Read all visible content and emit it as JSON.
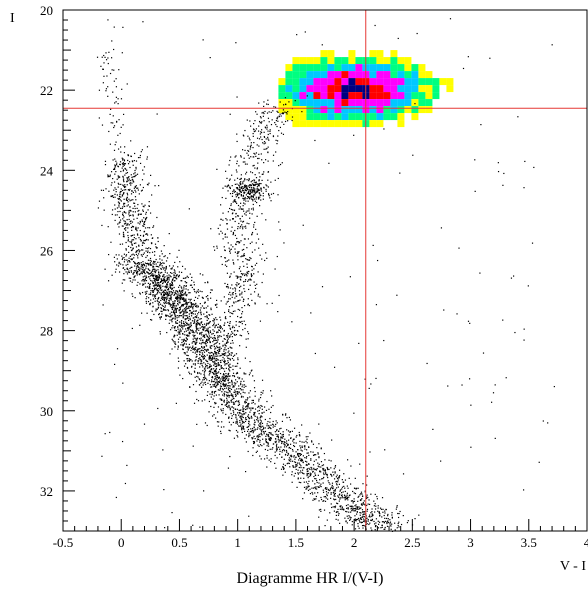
{
  "chart_data": {
    "type": "scatter",
    "title": "Diagramme HR I/(V-I)",
    "xlabel": "V - I",
    "ylabel": "I",
    "xlim": [
      -0.5,
      4.0
    ],
    "ylim": [
      33.0,
      20.0
    ],
    "y_inverted": true,
    "x_ticks": [
      -0.5,
      0,
      0.5,
      1,
      1.5,
      2,
      2.5,
      3,
      3.5,
      4
    ],
    "x_tick_labels": [
      "-0.5",
      "0",
      "0.5",
      "1",
      "1.5",
      "2",
      "2.5",
      "3",
      "3.5",
      "4"
    ],
    "y_ticks": [
      20,
      22,
      24,
      26,
      28,
      30,
      32
    ],
    "y_tick_labels": [
      "20",
      "22",
      "24",
      "26",
      "28",
      "30",
      "32"
    ],
    "crosshair": {
      "x": 2.1,
      "y": 22.45,
      "color": "#e53935"
    },
    "grid": false,
    "point_color": "#000000",
    "density_colors": [
      "#ffff00",
      "#00ff80",
      "#00c8ff",
      "#ff00ff",
      "#ff0000",
      "#000080"
    ],
    "series": [
      {
        "structure": "main-sequence",
        "points": [
          [
            0.1,
            26.2
          ],
          [
            0.2,
            26.4
          ],
          [
            0.3,
            26.6
          ],
          [
            0.35,
            26.8
          ],
          [
            0.4,
            27.0
          ],
          [
            0.45,
            27.2
          ],
          [
            0.5,
            27.4
          ],
          [
            0.55,
            27.6
          ],
          [
            0.6,
            27.8
          ],
          [
            0.65,
            28.0
          ],
          [
            0.7,
            28.3
          ],
          [
            0.75,
            28.6
          ],
          [
            0.8,
            28.9
          ],
          [
            0.85,
            29.2
          ],
          [
            0.9,
            29.5
          ],
          [
            1.0,
            29.9
          ],
          [
            1.1,
            30.2
          ],
          [
            1.2,
            30.5
          ],
          [
            1.35,
            30.8
          ],
          [
            1.5,
            31.1
          ],
          [
            1.65,
            31.5
          ],
          [
            1.8,
            31.9
          ],
          [
            1.95,
            32.3
          ],
          [
            2.1,
            32.6
          ],
          [
            2.3,
            32.8
          ]
        ],
        "spread": 0.12,
        "count": 3200
      },
      {
        "structure": "sub-giant-branch",
        "points": [
          [
            0.05,
            23.6
          ],
          [
            0.02,
            24.2
          ],
          [
            0.05,
            24.8
          ],
          [
            0.1,
            25.4
          ],
          [
            0.15,
            25.9
          ]
        ],
        "spread": 0.1,
        "count": 450
      },
      {
        "structure": "red-giant-branch",
        "points": [
          [
            0.9,
            28.2
          ],
          [
            0.95,
            27.6
          ],
          [
            1.0,
            27.0
          ],
          [
            1.05,
            26.4
          ],
          [
            1.0,
            25.8
          ],
          [
            1.0,
            25.2
          ],
          [
            1.05,
            24.6
          ],
          [
            1.1,
            24.0
          ],
          [
            1.15,
            23.4
          ],
          [
            1.25,
            22.8
          ],
          [
            1.4,
            22.4
          ]
        ],
        "spread": 0.1,
        "count": 700
      },
      {
        "structure": "clump",
        "points": [
          [
            1.1,
            24.5
          ]
        ],
        "spread": 0.08,
        "count": 180
      },
      {
        "structure": "blue-stragglers",
        "points": [
          [
            -0.15,
            20.8
          ],
          [
            -0.1,
            21.6
          ],
          [
            -0.05,
            22.6
          ],
          [
            0.0,
            23.2
          ]
        ],
        "spread": 0.06,
        "count": 60
      },
      {
        "structure": "scattered-field",
        "box": [
          [
            -0.2,
            20.2
          ],
          [
            3.8,
            33.0
          ]
        ],
        "count": 160
      }
    ],
    "density_region": {
      "center": [
        2.0,
        22.0
      ],
      "x_range": [
        1.35,
        2.95
      ],
      "y_range": [
        21.0,
        22.9
      ]
    }
  }
}
